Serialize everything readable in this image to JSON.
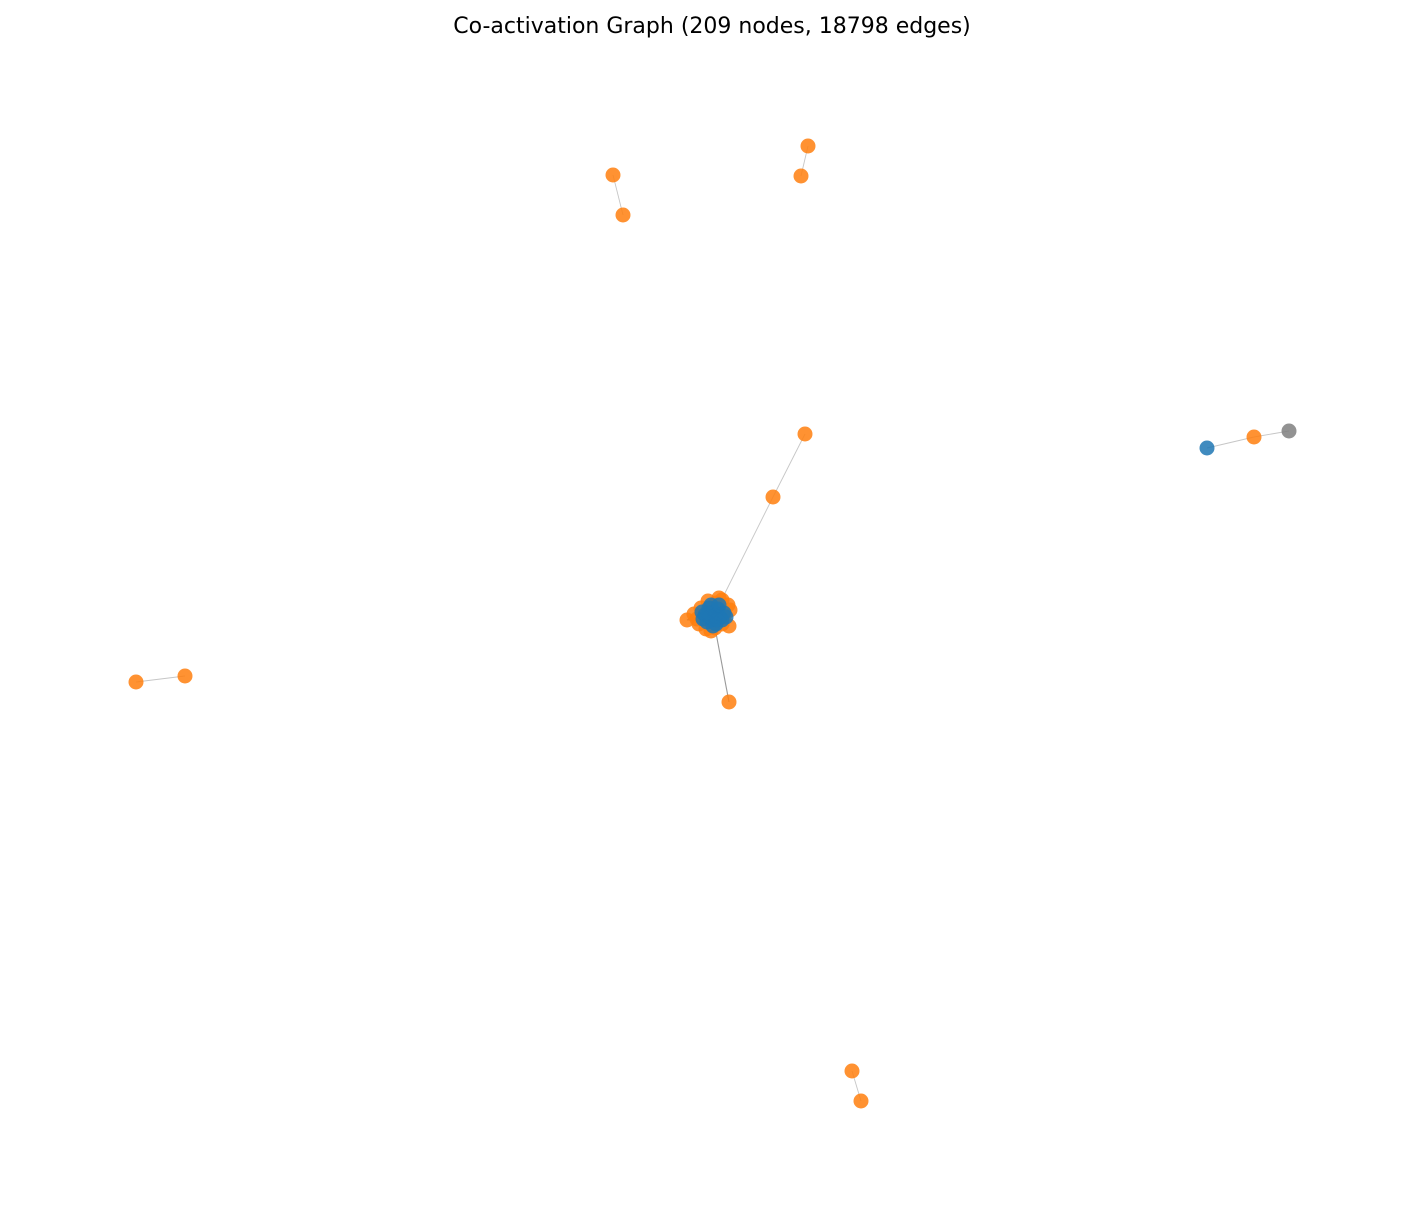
{
  "title": "Co-activation Graph (209 nodes, 18798 edges)",
  "colors": {
    "orange": "#ff7f0e",
    "blue": "#1f77b4",
    "gray": "#7f7f7f",
    "edge": "#808080"
  },
  "components": [
    {
      "name": "main-cluster",
      "nodes": [
        "c0",
        "c1",
        "c2",
        "c3",
        "c4",
        "c5",
        "c6",
        "c7",
        "c8",
        "c9",
        "c10",
        "c11",
        "c12",
        "c13",
        "c14",
        "c15",
        "c16",
        "c17",
        "b0",
        "b1",
        "b2",
        "b3",
        "b4",
        "b5",
        "b6",
        "b7",
        "b8",
        "b9",
        "b10",
        "b11",
        "b12",
        "b13",
        "b14",
        "b15",
        "b16",
        "b17",
        "b18",
        "b19",
        "o_up1",
        "o_up2",
        "o_down"
      ]
    },
    {
      "name": "pair-top-left",
      "nodes": [
        "pA1",
        "pA2"
      ]
    },
    {
      "name": "pair-top-right",
      "nodes": [
        "pB1",
        "pB2"
      ]
    },
    {
      "name": "pair-left",
      "nodes": [
        "pC1",
        "pC2"
      ]
    },
    {
      "name": "pair-bottom",
      "nodes": [
        "pD1",
        "pD2"
      ]
    },
    {
      "name": "triple-right",
      "nodes": [
        "tB",
        "tO",
        "tG"
      ]
    }
  ],
  "node_colors": {
    "c0": "orange",
    "c1": "orange",
    "c2": "orange",
    "c3": "orange",
    "c4": "orange",
    "c5": "orange",
    "c6": "orange",
    "c7": "orange",
    "c8": "orange",
    "c9": "orange",
    "c10": "orange",
    "c11": "orange",
    "c12": "orange",
    "c13": "orange",
    "c14": "orange",
    "c15": "orange",
    "c16": "orange",
    "c17": "orange",
    "b0": "blue",
    "b1": "blue",
    "b2": "blue",
    "b3": "blue",
    "b4": "blue",
    "b5": "blue",
    "b6": "blue",
    "b7": "blue",
    "b8": "blue",
    "b9": "blue",
    "b10": "blue",
    "b11": "blue",
    "b12": "blue",
    "b13": "blue",
    "b14": "blue",
    "b15": "blue",
    "b16": "blue",
    "b17": "blue",
    "b18": "blue",
    "b19": "blue",
    "o_up1": "orange",
    "o_up2": "orange",
    "o_down": "orange",
    "pA1": "orange",
    "pA2": "orange",
    "pB1": "orange",
    "pB2": "orange",
    "pC1": "orange",
    "pC2": "orange",
    "pD1": "orange",
    "pD2": "orange",
    "tB": "blue",
    "tO": "orange",
    "tG": "gray"
  },
  "edges": [
    {
      "from": "c0",
      "to": "o_up1",
      "weight": "light"
    },
    {
      "from": "o_up1",
      "to": "o_up2",
      "weight": "light"
    },
    {
      "from": "c0",
      "to": "o_down",
      "weight": "dark"
    },
    {
      "from": "pA1",
      "to": "pA2",
      "weight": "light"
    },
    {
      "from": "pB1",
      "to": "pB2",
      "weight": "light"
    },
    {
      "from": "pC1",
      "to": "pC2",
      "weight": "light"
    },
    {
      "from": "pD1",
      "to": "pD2",
      "weight": "light"
    },
    {
      "from": "tB",
      "to": "tO",
      "weight": "light"
    },
    {
      "from": "tO",
      "to": "tG",
      "weight": "light"
    }
  ]
}
